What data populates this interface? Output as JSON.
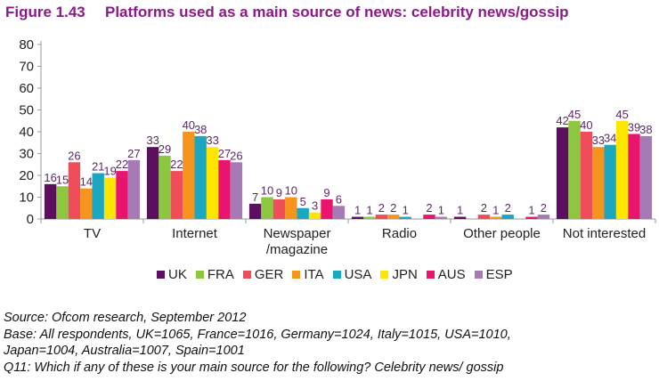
{
  "figure": {
    "number": "Figure 1.43",
    "title": "Platforms used as a main source of news: celebrity news/gossip"
  },
  "chart_data": {
    "type": "bar",
    "categories": [
      "TV",
      "Internet",
      "Newspaper\n/magazine",
      "Radio",
      "Other people",
      "Not interested"
    ],
    "series": [
      {
        "name": "UK",
        "color": "#5b0f5e",
        "values": [
          16,
          33,
          7,
          1,
          1,
          42
        ]
      },
      {
        "name": "FRA",
        "color": "#8dc63f",
        "values": [
          15,
          29,
          10,
          1,
          0,
          45
        ]
      },
      {
        "name": "GER",
        "color": "#ef4d5a",
        "values": [
          26,
          22,
          9,
          2,
          2,
          40
        ]
      },
      {
        "name": "ITA",
        "color": "#f7941d",
        "values": [
          14,
          40,
          10,
          2,
          1,
          33
        ]
      },
      {
        "name": "USA",
        "color": "#1aa7c1",
        "values": [
          21,
          38,
          5,
          1,
          2,
          34
        ]
      },
      {
        "name": "JPN",
        "color": "#ffe600",
        "values": [
          19,
          33,
          3,
          0,
          0,
          45
        ]
      },
      {
        "name": "AUS",
        "color": "#e8146e",
        "values": [
          22,
          27,
          9,
          2,
          1,
          39
        ]
      },
      {
        "name": "ESP",
        "color": "#a67bb5",
        "values": [
          27,
          26,
          6,
          1,
          2,
          38
        ]
      }
    ],
    "value_labels": [
      [
        "16",
        "33",
        "7",
        "1",
        "1",
        "42"
      ],
      [
        "15",
        "29",
        "10",
        "1",
        "",
        "45"
      ],
      [
        "26",
        "22",
        "9",
        "2",
        "2",
        "40"
      ],
      [
        "14",
        "40",
        "10",
        "2",
        "1",
        "33"
      ],
      [
        "21",
        "38",
        "5",
        "1",
        "2",
        "34"
      ],
      [
        "19",
        "33",
        "3",
        "",
        "",
        "45"
      ],
      [
        "22",
        "27",
        "9",
        "2",
        "1",
        "39"
      ],
      [
        "27",
        "26",
        "6",
        "1",
        "2",
        "38"
      ]
    ],
    "ylim": [
      0,
      80
    ],
    "yticks": [
      0,
      10,
      20,
      30,
      40,
      50,
      60,
      70,
      80
    ],
    "grid": false,
    "legend": "bottom",
    "label_color": "#5b2a66"
  },
  "notes": {
    "source": "Source: Ofcom research, September 2012",
    "base_line1": "Base: All respondents, UK=1065, France=1016, Germany=1024, Italy=1015, USA=1010,",
    "base_line2": "Japan=1004, Australia=1007, Spain=1001",
    "question": "Q11: Which if any of these is your main source for the following? Celebrity news/ gossip"
  }
}
